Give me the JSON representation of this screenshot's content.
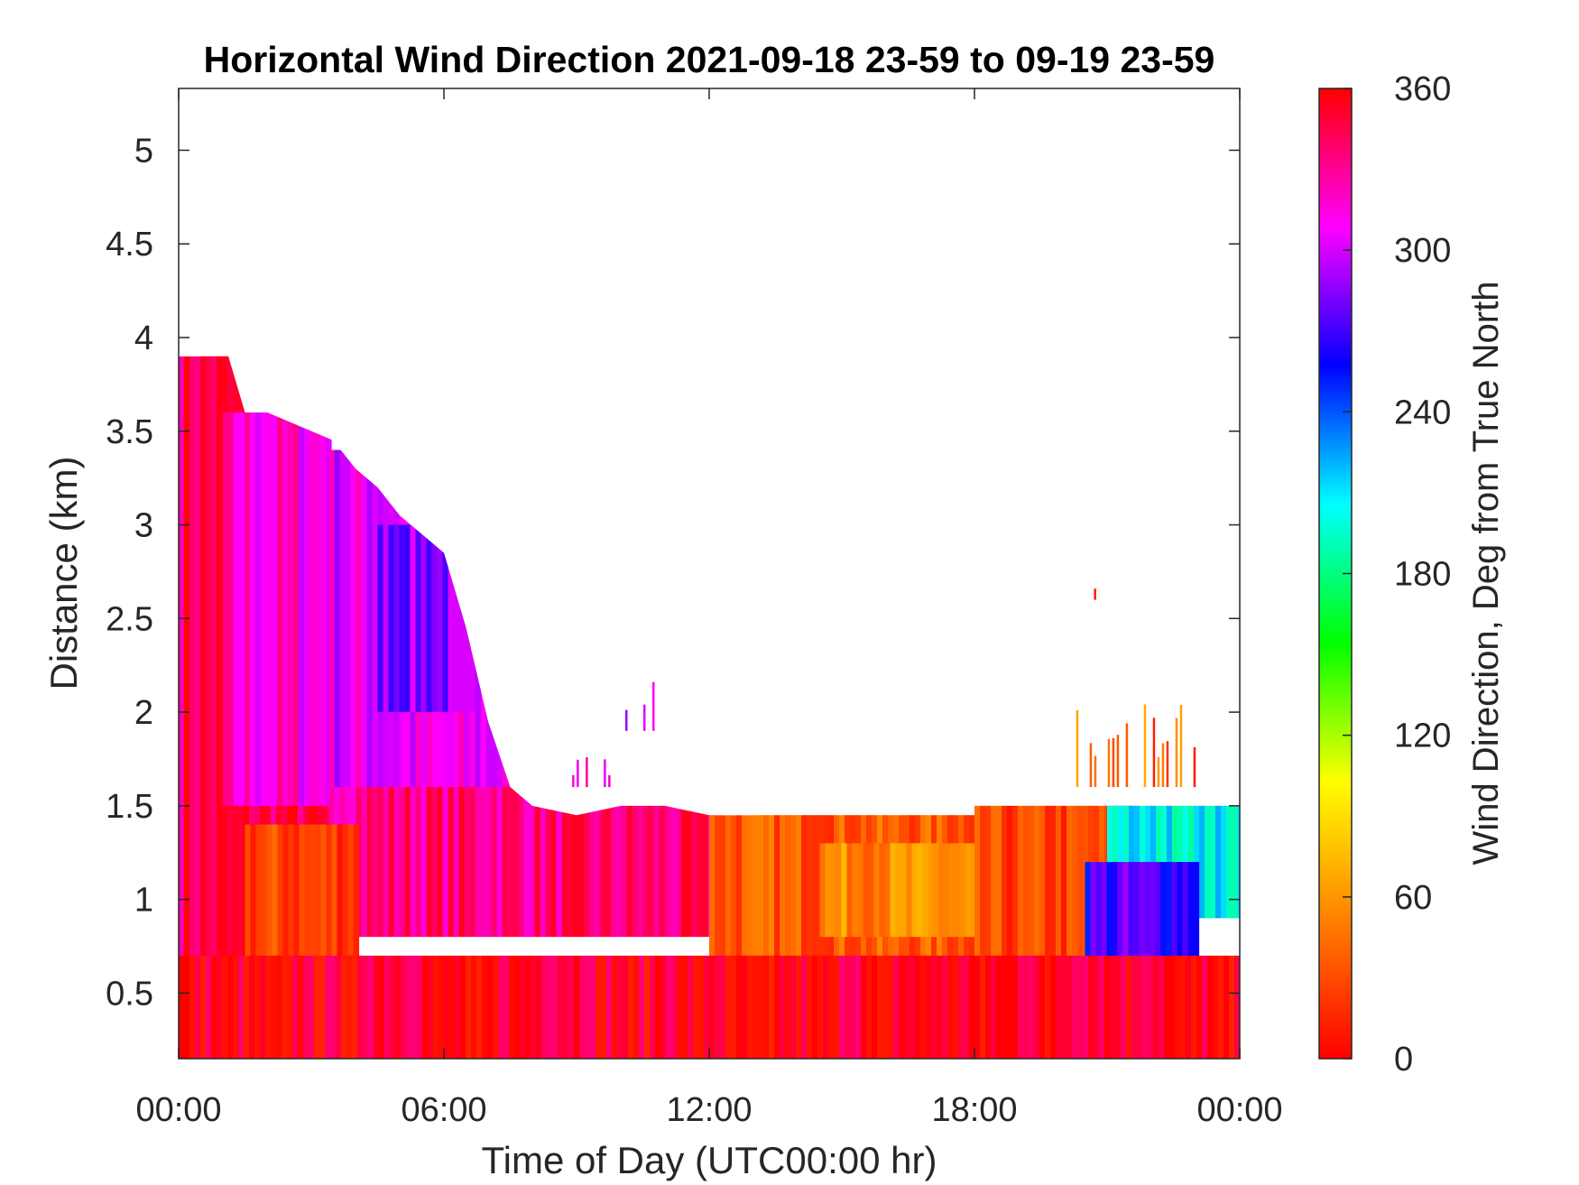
{
  "chart_data": {
    "type": "heatmap",
    "title": "Horizontal Wind Direction 2021-09-18 23-59 to 09-19 23-59",
    "xlabel": "Time of Day (UTC00:00 hr)",
    "ylabel": "Distance (km)",
    "x_ticks": [
      {
        "label": "00:00",
        "value": 0
      },
      {
        "label": "06:00",
        "value": 6
      },
      {
        "label": "12:00",
        "value": 12
      },
      {
        "label": "18:00",
        "value": 18
      },
      {
        "label": "00:00",
        "value": 24
      }
    ],
    "y_ticks": [
      {
        "label": "0.5",
        "value": 0.5
      },
      {
        "label": "1",
        "value": 1
      },
      {
        "label": "1.5",
        "value": 1.5
      },
      {
        "label": "2",
        "value": 2
      },
      {
        "label": "2.5",
        "value": 2.5
      },
      {
        "label": "3",
        "value": 3
      },
      {
        "label": "3.5",
        "value": 3.5
      },
      {
        "label": "4",
        "value": 4
      },
      {
        "label": "4.5",
        "value": 4.5
      },
      {
        "label": "5",
        "value": 5
      }
    ],
    "xlim": [
      0,
      24
    ],
    "ylim": [
      0.15,
      5.33
    ],
    "grid": false,
    "colorbar": {
      "label": "Wind Direction, Deg from True North",
      "range": [
        0,
        360
      ],
      "ticks": [
        {
          "label": "0",
          "value": 0
        },
        {
          "label": "60",
          "value": 60
        },
        {
          "label": "120",
          "value": 120
        },
        {
          "label": "180",
          "value": 180
        },
        {
          "label": "240",
          "value": 240
        },
        {
          "label": "300",
          "value": 300
        },
        {
          "label": "360",
          "value": 360
        }
      ],
      "colors": [
        "#ff0000",
        "#ff8000",
        "#ffff00",
        "#00ff00",
        "#00ffff",
        "#0000ff",
        "#ff00ff",
        "#ff0000"
      ]
    },
    "data_top_km": [
      {
        "time": 0.0,
        "top": 3.9
      },
      {
        "time": 0.5,
        "top": 3.9
      },
      {
        "time": 1.0,
        "top": 4.0
      },
      {
        "time": 1.5,
        "top": 3.6
      },
      {
        "time": 2.0,
        "top": 3.6
      },
      {
        "time": 2.5,
        "top": 3.55
      },
      {
        "time": 3.0,
        "top": 3.5
      },
      {
        "time": 3.5,
        "top": 3.45
      },
      {
        "time": 4.0,
        "top": 3.3
      },
      {
        "time": 4.5,
        "top": 3.2
      },
      {
        "time": 5.0,
        "top": 3.05
      },
      {
        "time": 5.5,
        "top": 2.95
      },
      {
        "time": 6.0,
        "top": 2.85
      },
      {
        "time": 6.5,
        "top": 2.45
      },
      {
        "time": 7.0,
        "top": 1.95
      },
      {
        "time": 7.5,
        "top": 1.6
      },
      {
        "time": 8.0,
        "top": 1.5
      },
      {
        "time": 9.0,
        "top": 1.45
      },
      {
        "time": 10.0,
        "top": 1.5
      },
      {
        "time": 11.0,
        "top": 1.5
      },
      {
        "time": 12.0,
        "top": 1.45
      },
      {
        "time": 13.0,
        "top": 1.45
      },
      {
        "time": 14.0,
        "top": 1.5
      },
      {
        "time": 16.0,
        "top": 1.6
      },
      {
        "time": 18.0,
        "top": 1.6
      },
      {
        "time": 20.0,
        "top": 1.6
      },
      {
        "time": 22.0,
        "top": 1.7
      },
      {
        "time": 23.0,
        "top": 1.8
      },
      {
        "time": 24.0,
        "top": 1.8
      }
    ],
    "direction_regions": [
      {
        "t0": 0.0,
        "t1": 3.4,
        "z0": 0.15,
        "z1": 3.9,
        "deg": 345
      },
      {
        "t0": 1.0,
        "t1": 3.4,
        "z0": 1.5,
        "z1": 3.6,
        "deg": 315
      },
      {
        "t0": 3.4,
        "t1": 7.5,
        "z0": 1.5,
        "z1": 3.4,
        "deg": 305
      },
      {
        "t0": 4.5,
        "t1": 6.8,
        "z0": 2.0,
        "z1": 3.0,
        "deg": 285
      },
      {
        "t0": 3.4,
        "t1": 12.0,
        "z0": 0.8,
        "z1": 1.6,
        "deg": 335
      },
      {
        "t0": 1.5,
        "t1": 4.0,
        "z0": 0.6,
        "z1": 1.4,
        "deg": 25
      },
      {
        "t0": 12.0,
        "t1": 18.0,
        "z0": 0.5,
        "z1": 1.45,
        "deg": 35
      },
      {
        "t0": 14.5,
        "t1": 18.5,
        "z0": 0.8,
        "z1": 1.3,
        "deg": 55
      },
      {
        "t0": 18.0,
        "t1": 21.5,
        "z0": 0.3,
        "z1": 1.5,
        "deg": 25
      },
      {
        "t0": 21.0,
        "t1": 24.0,
        "z0": 0.9,
        "z1": 1.5,
        "deg": 205
      },
      {
        "t0": 20.5,
        "t1": 23.0,
        "z0": 0.6,
        "z1": 1.2,
        "deg": 270
      },
      {
        "t0": 0.0,
        "t1": 24.0,
        "z0": 0.15,
        "z1": 0.7,
        "deg": 355
      }
    ],
    "sparse_patches": [
      {
        "t0": 10.0,
        "t1": 11.0,
        "z0": 1.9,
        "z1": 2.2,
        "deg": 300
      },
      {
        "t0": 8.9,
        "t1": 10.0,
        "z0": 1.6,
        "z1": 1.8,
        "deg": 300
      },
      {
        "t0": 20.3,
        "t1": 23.0,
        "z0": 1.6,
        "z1": 2.1,
        "deg": 40
      },
      {
        "t0": 20.6,
        "t1": 20.9,
        "z0": 2.6,
        "z1": 2.72,
        "deg": 10
      }
    ]
  }
}
